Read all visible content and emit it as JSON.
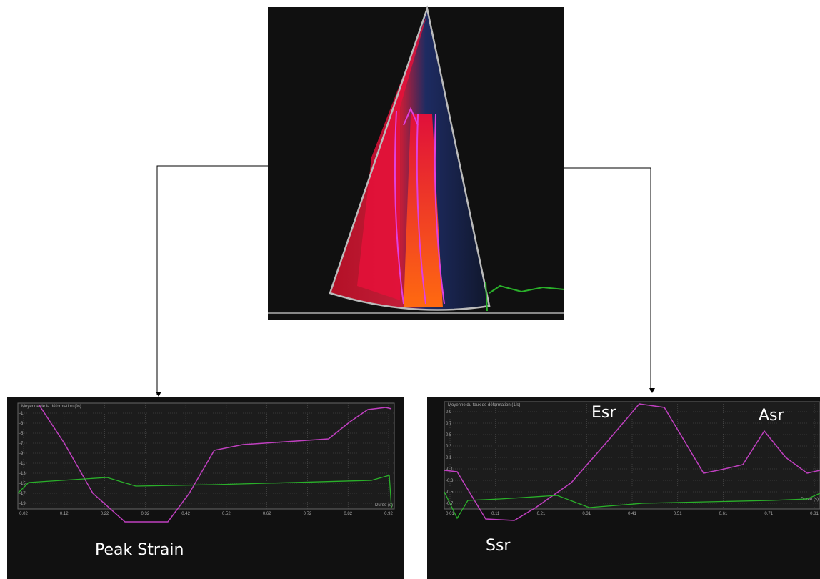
{
  "left_panel": {
    "title": "Moyenne de la déformation (%)",
    "x_label": "Durée (s)",
    "x_ticks": [
      "0.02",
      "0.12",
      "0.22",
      "0.32",
      "0.42",
      "0.52",
      "0.62",
      "0.72",
      "0.82",
      "0.92"
    ],
    "y_ticks": [
      "-1",
      "-3",
      "-5",
      "-7",
      "-9",
      "-11",
      "-13",
      "-15",
      "-17",
      "-19"
    ],
    "annotations": [
      "Peak Strain"
    ]
  },
  "right_panel": {
    "title": "Moyenne du taux de déformation (1/s)",
    "x_label": "Durée (s)",
    "x_ticks": [
      "0.01",
      "0.11",
      "0.21",
      "0.31",
      "0.41",
      "0.51",
      "0.61",
      "0.71",
      "0.81"
    ],
    "y_ticks": [
      "0.9",
      "0.7",
      "0.5",
      "0.3",
      "0.1",
      "-0.1",
      "-0.3",
      "-0.5",
      "-0.7"
    ],
    "annotations": [
      "Ssr",
      "Esr",
      "Asr"
    ]
  }
}
